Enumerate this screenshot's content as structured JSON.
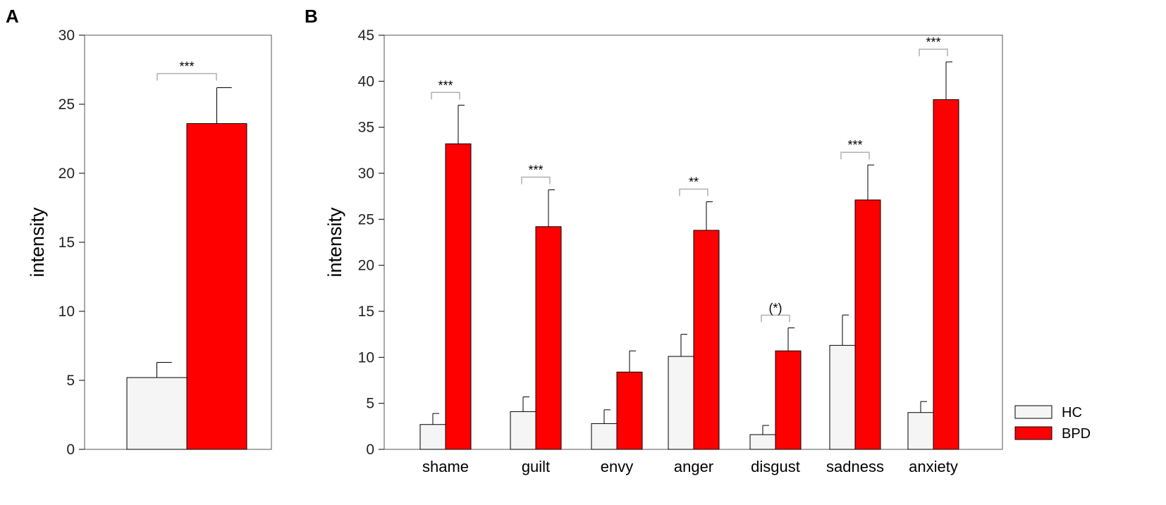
{
  "colors": {
    "HC": "#f5f5f5",
    "BPD": "#ff0000",
    "axis": "#000000",
    "bracket": "#b0b0b0"
  },
  "legend": [
    {
      "key": "HC",
      "label": "HC"
    },
    {
      "key": "BPD",
      "label": "BPD"
    }
  ],
  "chart_data": [
    {
      "panel": "A",
      "type": "bar",
      "ylabel": "intensity",
      "ylim": [
        0,
        30
      ],
      "yticks": [
        0,
        5,
        10,
        15,
        20,
        25,
        30
      ],
      "categories": [
        ""
      ],
      "series": [
        {
          "name": "HC",
          "values": [
            5.2
          ],
          "errors": [
            1.1
          ]
        },
        {
          "name": "BPD",
          "values": [
            23.6
          ],
          "errors": [
            2.6
          ]
        }
      ],
      "significance": [
        "***"
      ]
    },
    {
      "panel": "B",
      "type": "bar",
      "ylabel": "intensity",
      "ylim": [
        0,
        45
      ],
      "yticks": [
        0,
        5,
        10,
        15,
        20,
        25,
        30,
        35,
        40,
        45
      ],
      "categories": [
        "shame",
        "guilt",
        "envy",
        "anger",
        "disgust",
        "sadness",
        "anxiety"
      ],
      "series": [
        {
          "name": "HC",
          "values": [
            2.7,
            4.1,
            2.8,
            10.1,
            1.6,
            11.3,
            4.0
          ],
          "errors": [
            1.2,
            1.6,
            1.5,
            2.4,
            1.0,
            3.3,
            1.2
          ]
        },
        {
          "name": "BPD",
          "values": [
            33.2,
            24.2,
            8.4,
            23.8,
            10.7,
            27.1,
            38.0
          ],
          "errors": [
            4.2,
            4.0,
            2.3,
            3.1,
            2.5,
            3.8,
            4.1
          ]
        }
      ],
      "significance": [
        "***",
        "***",
        "",
        "**",
        "(*)",
        "***",
        "***"
      ]
    }
  ]
}
